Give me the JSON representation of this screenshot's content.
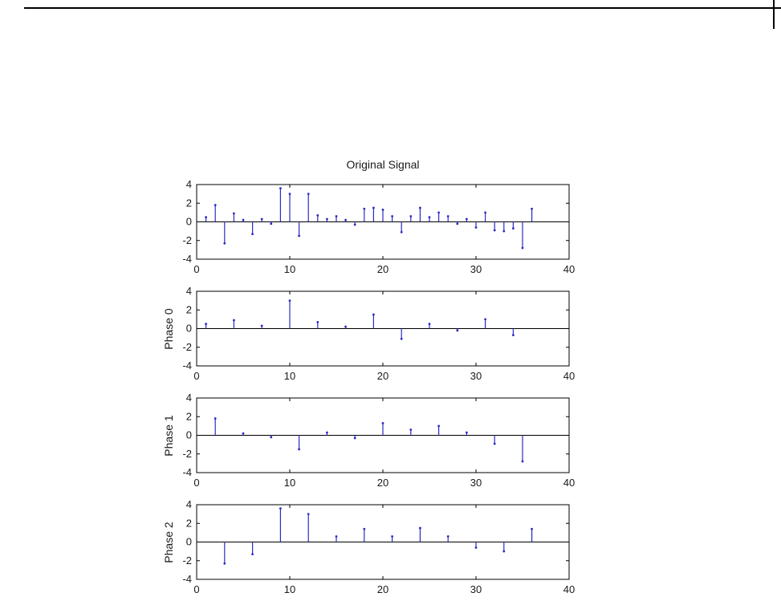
{
  "figure": {
    "title": "Original Signal"
  },
  "colors": {
    "stem": "#2b2bc4",
    "axis": "#000000",
    "baseline": "#000000",
    "background": "#ffffff",
    "page_border": "#000000"
  },
  "chart_data": [
    {
      "type": "stem",
      "title": "Original Signal",
      "ylabel": "",
      "xlim": [
        0,
        40
      ],
      "ylim": [
        -4,
        4
      ],
      "xticks": [
        0,
        10,
        20,
        30,
        40
      ],
      "yticks": [
        4,
        2,
        0,
        -2,
        -4
      ],
      "x": [
        1,
        2,
        3,
        4,
        5,
        6,
        7,
        8,
        9,
        10,
        11,
        12,
        13,
        14,
        15,
        16,
        17,
        18,
        19,
        20,
        21,
        22,
        23,
        24,
        25,
        26,
        27,
        28,
        29,
        30,
        31,
        32,
        33,
        34,
        35,
        36
      ],
      "y": [
        0.5,
        1.8,
        -2.3,
        0.9,
        0.2,
        -1.3,
        0.3,
        -0.2,
        3.6,
        3.0,
        -1.5,
        3.0,
        0.7,
        0.3,
        0.6,
        0.2,
        -0.3,
        1.4,
        1.5,
        1.3,
        0.6,
        -1.1,
        0.6,
        1.5,
        0.5,
        1.0,
        0.6,
        -0.2,
        0.3,
        -0.6,
        1.0,
        -0.9,
        -1.0,
        -0.7,
        -2.8,
        1.4
      ]
    },
    {
      "type": "stem",
      "title": "",
      "ylabel": "Phase 0",
      "xlim": [
        0,
        40
      ],
      "ylim": [
        -4,
        4
      ],
      "xticks": [
        0,
        10,
        20,
        30,
        40
      ],
      "yticks": [
        4,
        2,
        0,
        -2,
        -4
      ],
      "x": [
        1,
        4,
        7,
        10,
        13,
        16,
        19,
        22,
        25,
        28,
        31,
        34
      ],
      "y": [
        0.5,
        0.9,
        0.3,
        3.0,
        0.7,
        0.2,
        1.5,
        -1.1,
        0.5,
        -0.2,
        1.0,
        -0.7
      ]
    },
    {
      "type": "stem",
      "title": "",
      "ylabel": "Phase 1",
      "xlim": [
        0,
        40
      ],
      "ylim": [
        -4,
        4
      ],
      "xticks": [
        0,
        10,
        20,
        30,
        40
      ],
      "yticks": [
        4,
        2,
        0,
        -2,
        -4
      ],
      "x": [
        2,
        5,
        8,
        11,
        14,
        17,
        20,
        23,
        26,
        29,
        32,
        35
      ],
      "y": [
        1.8,
        0.2,
        -0.2,
        -1.5,
        0.3,
        -0.3,
        1.3,
        0.6,
        1.0,
        0.3,
        -0.9,
        -2.8
      ]
    },
    {
      "type": "stem",
      "title": "",
      "ylabel": "Phase 2",
      "xlim": [
        0,
        40
      ],
      "ylim": [
        -4,
        4
      ],
      "xticks": [
        0,
        10,
        20,
        30,
        40
      ],
      "yticks": [
        4,
        2,
        0,
        -2,
        -4
      ],
      "x": [
        3,
        6,
        9,
        12,
        15,
        18,
        21,
        24,
        27,
        30,
        33,
        36
      ],
      "y": [
        -2.3,
        -1.3,
        3.6,
        3.0,
        0.6,
        1.4,
        0.6,
        1.5,
        0.6,
        -0.6,
        -1.0,
        1.4
      ]
    }
  ]
}
